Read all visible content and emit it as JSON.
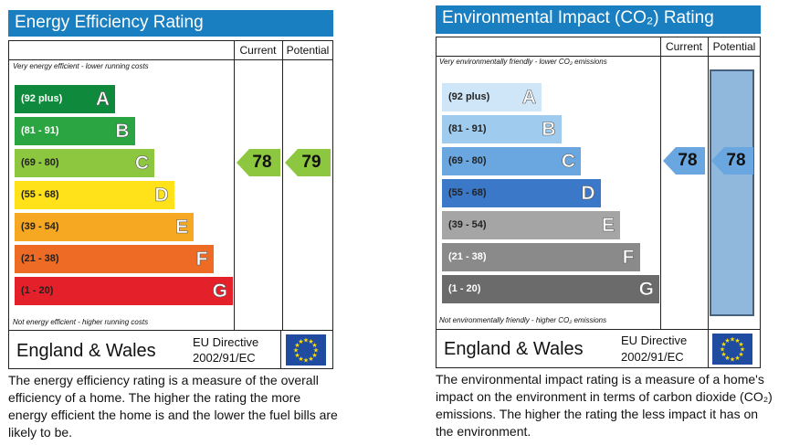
{
  "energy": {
    "title": "Energy Efficiency Rating",
    "col_current": "Current",
    "col_potential": "Potential",
    "note_top": "Very energy efficient - lower running costs",
    "note_bottom": "Not energy efficient - higher running costs",
    "bands": [
      {
        "range": "(92 plus)",
        "letter": "A",
        "color": "#0f8a3c",
        "text_color": "#ffffff"
      },
      {
        "range": "(81 - 91)",
        "letter": "B",
        "color": "#2aa542",
        "text_color": "#ffffff"
      },
      {
        "range": "(69 - 80)",
        "letter": "C",
        "color": "#8dc63f",
        "text_color": "#222222"
      },
      {
        "range": "(55 - 68)",
        "letter": "D",
        "color": "#ffe21a",
        "text_color": "#222222"
      },
      {
        "range": "(39 - 54)",
        "letter": "E",
        "color": "#f7a823",
        "text_color": "#222222"
      },
      {
        "range": "(21 - 38)",
        "letter": "F",
        "color": "#ee6b26",
        "text_color": "#222222"
      },
      {
        "range": "(1 - 20)",
        "letter": "G",
        "color": "#e4202a",
        "text_color": "#222222"
      }
    ],
    "current": {
      "value": "78",
      "band": "C",
      "color": "#8dc63f"
    },
    "potential": {
      "value": "79",
      "band": "C",
      "color": "#8dc63f"
    },
    "footer_region": "England & Wales",
    "directive_line1": "EU Directive",
    "directive_line2": "2002/91/EC",
    "description": "The energy efficiency rating is a measure of the overall efficiency of a home. The higher the rating the more energy efficient the home is and the lower the fuel bills are likely to be."
  },
  "environment": {
    "title": "Environmental Impact (CO₂) Rating",
    "col_current": "Current",
    "col_potential": "Potential",
    "note_top": "Very environmentally friendly - lower CO₂ emissions",
    "note_bottom": "Not environmentally friendly - higher CO₂ emissions",
    "bands": [
      {
        "range": "(92 plus)",
        "letter": "A",
        "color": "#cfe6f8",
        "text_color": "#222222"
      },
      {
        "range": "(81 - 91)",
        "letter": "B",
        "color": "#9ecbee",
        "text_color": "#222222"
      },
      {
        "range": "(69 - 80)",
        "letter": "C",
        "color": "#6aa7e0",
        "text_color": "#222222"
      },
      {
        "range": "(55 - 68)",
        "letter": "D",
        "color": "#3c78c8",
        "text_color": "#222222"
      },
      {
        "range": "(39 - 54)",
        "letter": "E",
        "color": "#a5a5a5",
        "text_color": "#222222"
      },
      {
        "range": "(21 - 38)",
        "letter": "F",
        "color": "#8a8a8a",
        "text_color": "#ffffff"
      },
      {
        "range": "(1 - 20)",
        "letter": "G",
        "color": "#6b6b6b",
        "text_color": "#ffffff"
      }
    ],
    "current": {
      "value": "78",
      "band": "C",
      "color": "#6aa7e0"
    },
    "potential": {
      "value": "78",
      "band": "C",
      "color": "#6aa7e0"
    },
    "potential_column_fill": "#8fb8dc",
    "footer_region": "England & Wales",
    "directive_line1": "EU Directive",
    "directive_line2": "2002/91/EC",
    "description": "The environmental impact rating is a measure of a home's impact on the environment in terms of carbon dioxide (CO₂) emissions. The higher the rating the less impact it has on the environment."
  },
  "eu_flag_icon": "eu-flag-icon"
}
